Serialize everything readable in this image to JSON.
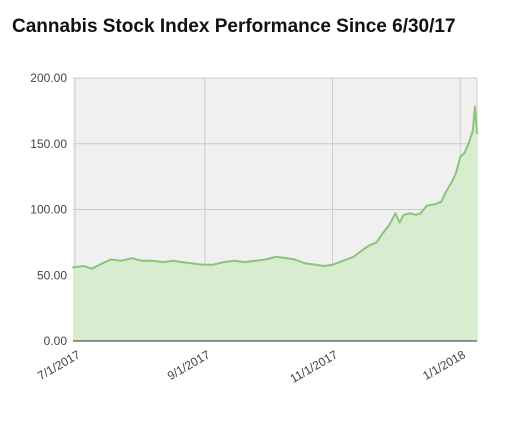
{
  "chart_data": {
    "type": "area",
    "title": "Cannabis Stock Index Performance Since 6/30/17",
    "xlabel": "",
    "ylabel": "",
    "ylim": [
      0,
      200
    ],
    "yticks": [
      "0.00",
      "50.00",
      "100.00",
      "150.00",
      "200.00"
    ],
    "xlim": [
      "2017-06-30",
      "2018-01-09"
    ],
    "xticks": [
      {
        "date": "2017-07-01",
        "label": "7/1/2017"
      },
      {
        "date": "2017-09-01",
        "label": "9/1/2017"
      },
      {
        "date": "2017-11-01",
        "label": "11/1/2017"
      },
      {
        "date": "2018-01-01",
        "label": "1/1/2018"
      }
    ],
    "grid": true,
    "legend": "none",
    "colors": {
      "line": "#8cc47a",
      "fill": "#d8eccf",
      "grid": "#cccccc"
    },
    "series": [
      {
        "x": [
          "2017-06-30",
          "2017-07-05",
          "2017-07-09",
          "2017-07-14",
          "2017-07-18",
          "2017-07-23",
          "2017-07-28",
          "2017-08-02",
          "2017-08-07",
          "2017-08-12",
          "2017-08-17",
          "2017-08-21",
          "2017-08-26",
          "2017-08-31",
          "2017-09-05",
          "2017-09-10",
          "2017-09-15",
          "2017-09-20",
          "2017-09-25",
          "2017-09-30",
          "2017-10-05",
          "2017-10-10",
          "2017-10-14",
          "2017-10-19",
          "2017-10-24",
          "2017-10-28",
          "2017-11-01",
          "2017-11-06",
          "2017-11-11",
          "2017-11-16",
          "2017-11-19",
          "2017-11-22",
          "2017-11-25",
          "2017-11-28",
          "2017-12-01",
          "2017-12-03",
          "2017-12-05",
          "2017-12-08",
          "2017-12-11",
          "2017-12-13",
          "2017-12-16",
          "2017-12-20",
          "2017-12-23",
          "2017-12-25",
          "2017-12-28",
          "2017-12-30",
          "2018-01-01",
          "2018-01-03",
          "2018-01-05",
          "2018-01-07",
          "2018-01-08",
          "2018-01-09"
        ],
        "values": [
          56,
          57,
          55,
          59,
          62,
          61,
          63,
          61,
          61,
          60,
          61,
          60,
          59,
          58,
          58,
          60,
          61,
          60,
          61,
          62,
          64,
          63,
          62,
          59,
          58,
          57,
          58,
          61,
          64,
          70,
          73,
          75,
          82,
          88,
          97,
          90,
          96,
          97,
          96,
          97,
          103,
          104,
          106,
          113,
          121,
          128,
          140,
          143,
          150,
          160,
          178,
          158
        ]
      }
    ]
  }
}
